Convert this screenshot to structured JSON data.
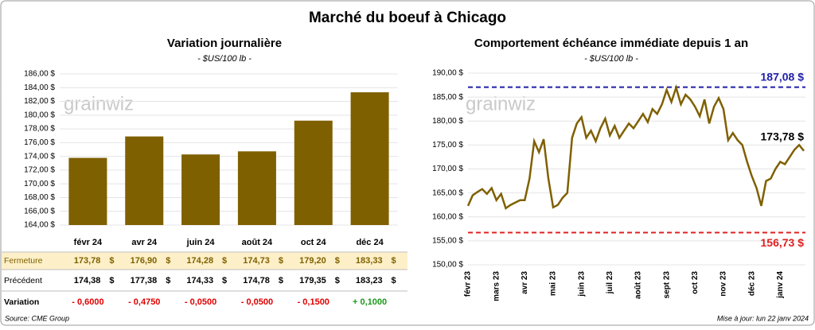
{
  "title": "Marché du boeuf à Chicago",
  "source": "Source: CME Group",
  "updated": "Mise à jour: lun 22 janv 2024",
  "watermark": "grainwiz",
  "chart_data": [
    {
      "type": "bar",
      "title": "Variation journalière",
      "subtitle": "- $US/100 lb -",
      "categories": [
        "févr 24",
        "avr 24",
        "juin 24",
        "août 24",
        "oct 24",
        "déc 24"
      ],
      "values": [
        173.78,
        176.9,
        174.28,
        174.73,
        179.2,
        183.33
      ],
      "color": "#7f6000",
      "grid": true,
      "ylim": [
        164,
        186
      ],
      "yticks": [
        {
          "value": 164,
          "label": "164,00 $"
        },
        {
          "value": 166,
          "label": "166,00 $"
        },
        {
          "value": 168,
          "label": "168,00 $"
        },
        {
          "value": 170,
          "label": "170,00 $"
        },
        {
          "value": 172,
          "label": "172,00 $"
        },
        {
          "value": 174,
          "label": "174,00 $"
        },
        {
          "value": 176,
          "label": "176,00 $"
        },
        {
          "value": 178,
          "label": "178,00 $"
        },
        {
          "value": 180,
          "label": "180,00 $"
        },
        {
          "value": 182,
          "label": "182,00 $"
        },
        {
          "value": 184,
          "label": "184,00 $"
        },
        {
          "value": 186,
          "label": "186,00 $"
        }
      ]
    },
    {
      "type": "line",
      "title": "Comportement  échéance immédiate depuis 1 an",
      "subtitle": "- $US/100 lb -",
      "categories": [
        "févr 23",
        null,
        null,
        null,
        null,
        null,
        "mars 23",
        null,
        null,
        null,
        null,
        null,
        "avr 23",
        null,
        null,
        null,
        null,
        null,
        "mai 23",
        null,
        null,
        null,
        null,
        null,
        "juin 23",
        null,
        null,
        null,
        null,
        null,
        "juil 23",
        null,
        null,
        null,
        null,
        null,
        "août 23",
        null,
        null,
        null,
        null,
        null,
        "sept 23",
        null,
        null,
        null,
        null,
        null,
        "oct 23",
        null,
        null,
        null,
        null,
        null,
        "nov 23",
        null,
        null,
        null,
        null,
        null,
        "déc 23",
        null,
        null,
        null,
        null,
        null,
        "janv 24",
        null,
        null,
        null,
        null,
        null
      ],
      "series": [
        {
          "name": "Fermeture",
          "color": "#7f6000",
          "values": [
            162.3,
            164.5,
            165.2,
            165.8,
            164.8,
            166.0,
            163.5,
            164.8,
            161.8,
            162.5,
            163.0,
            163.5,
            163.5,
            168.0,
            175.8,
            173.5,
            176.2,
            168.0,
            162.0,
            162.5,
            164.0,
            165.0,
            176.5,
            179.5,
            180.8,
            176.5,
            178.0,
            175.8,
            178.5,
            180.5,
            177.0,
            179.0,
            176.5,
            178.0,
            179.5,
            178.5,
            180.0,
            181.5,
            179.8,
            182.5,
            181.5,
            183.5,
            186.5,
            184.0,
            187.0,
            183.5,
            185.5,
            184.5,
            183.0,
            181.0,
            184.5,
            179.5,
            183.0,
            184.8,
            182.5,
            176.0,
            177.5,
            176.0,
            175.0,
            171.5,
            168.5,
            166.0,
            162.3,
            167.5,
            168.0,
            170.0,
            171.5,
            171.0,
            172.5,
            174.0,
            175.0,
            173.78
          ]
        }
      ],
      "end_label": "173,78 $",
      "reference_lines": [
        {
          "value": 187.08,
          "label": "187,08 $",
          "color": "#1f1fa8"
        },
        {
          "value": 156.73,
          "label": "156,73 $",
          "color": "#e02020"
        }
      ],
      "grid": true,
      "ylim": [
        150,
        190
      ],
      "yticks": [
        {
          "value": 150,
          "label": "150,00 $"
        },
        {
          "value": 155,
          "label": "155,00 $"
        },
        {
          "value": 160,
          "label": "160,00 $"
        },
        {
          "value": 165,
          "label": "165,00 $"
        },
        {
          "value": 170,
          "label": "170,00 $"
        },
        {
          "value": 175,
          "label": "175,00 $"
        },
        {
          "value": 180,
          "label": "180,00 $"
        },
        {
          "value": 185,
          "label": "185,00 $"
        },
        {
          "value": 190,
          "label": "190,00 $"
        }
      ]
    }
  ],
  "table": {
    "rows": [
      {
        "label": "Fermeture",
        "unit": "$",
        "color": "#7f6000",
        "values": [
          "173,78",
          "176,90",
          "174,28",
          "174,73",
          "179,20",
          "183,33"
        ]
      },
      {
        "label": "Précédent",
        "unit": "$",
        "color": "#000000",
        "values": [
          "174,38",
          "177,38",
          "174,33",
          "174,78",
          "179,35",
          "183,23"
        ]
      },
      {
        "label": "Variation",
        "values": [
          "- 0,6000",
          "- 0,4750",
          "- 0,0500",
          "- 0,0500",
          "- 0,1500",
          "+ 0,1000"
        ]
      }
    ]
  }
}
